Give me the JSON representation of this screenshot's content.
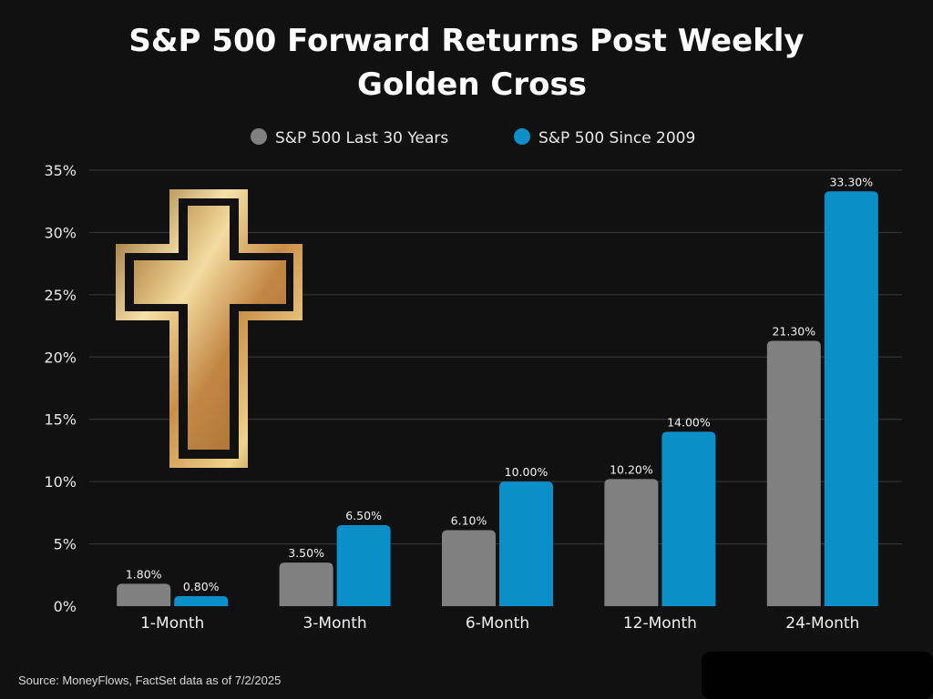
{
  "chart_data": {
    "type": "bar",
    "title_line1": "S&P 500 Forward Returns Post Weekly",
    "title_line2": "Golden Cross",
    "categories": [
      "1-Month",
      "3-Month",
      "6-Month",
      "12-Month",
      "24-Month"
    ],
    "series": [
      {
        "name": "S&P 500 Last 30 Years",
        "color": "#808080",
        "values": [
          1.8,
          3.5,
          6.1,
          10.2,
          21.3
        ],
        "labels": [
          "1.80%",
          "3.50%",
          "6.10%",
          "10.20%",
          "21.30%"
        ]
      },
      {
        "name": "S&P 500 Since 2009",
        "color": "#0b8fc8",
        "values": [
          0.8,
          6.5,
          10.0,
          14.0,
          33.3
        ],
        "labels": [
          "0.80%",
          "6.50%",
          "10.00%",
          "14.00%",
          "33.30%"
        ]
      }
    ],
    "ylim": [
      0,
      35
    ],
    "yticks": [
      0,
      5,
      10,
      15,
      20,
      25,
      30,
      35
    ],
    "ytick_labels": [
      "0%",
      "5%",
      "10%",
      "15%",
      "20%",
      "25%",
      "30%",
      "35%"
    ],
    "grid": true,
    "legend_position": "top-center",
    "decoration_icon": "golden-cross-icon"
  },
  "footer": {
    "source": "Source: MoneyFlows, FactSet data as of 7/2/2025"
  }
}
